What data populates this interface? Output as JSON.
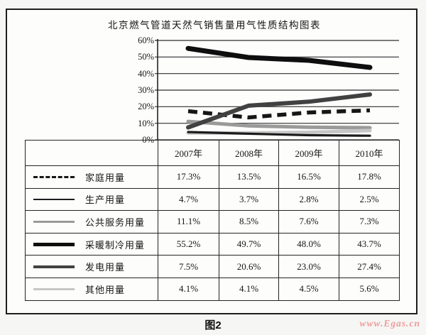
{
  "page": {
    "caption": "图2",
    "watermark": "www.Egas.cn"
  },
  "chart_data": {
    "type": "line",
    "title": "北京燃气管道天然气销售量用气性质结构图表",
    "categories": [
      "2007年",
      "2008年",
      "2009年",
      "2010年"
    ],
    "xlabel": "",
    "ylabel": "",
    "ylim": [
      0,
      60
    ],
    "ytick_labels": [
      "60%",
      "50%",
      "40%",
      "30%",
      "20%",
      "10%",
      "0%"
    ],
    "grid": true,
    "legend_position": "table-left",
    "series": [
      {
        "name": "家庭用量",
        "values": [
          17.3,
          13.5,
          16.5,
          17.8
        ],
        "color": "#161616",
        "dash": true,
        "width": 5.5
      },
      {
        "name": "生产用量",
        "values": [
          4.7,
          3.7,
          2.8,
          2.5
        ],
        "color": "#1c1c1c",
        "dash": false,
        "width": 3.2
      },
      {
        "name": "公共服务用量",
        "values": [
          11.1,
          8.5,
          7.6,
          7.3
        ],
        "color": "#9a9a9a",
        "dash": false,
        "width": 5
      },
      {
        "name": "采暖制冷用量",
        "values": [
          55.2,
          49.7,
          48.0,
          43.7
        ],
        "color": "#0e0e0e",
        "dash": false,
        "width": 7
      },
      {
        "name": "发电用量",
        "values": [
          7.5,
          20.6,
          23.0,
          27.4
        ],
        "color": "#414141",
        "dash": false,
        "width": 6
      },
      {
        "name": "其他用量",
        "values": [
          4.1,
          4.1,
          4.5,
          5.6
        ],
        "color": "#c6c6c6",
        "dash": false,
        "width": 5
      }
    ]
  }
}
